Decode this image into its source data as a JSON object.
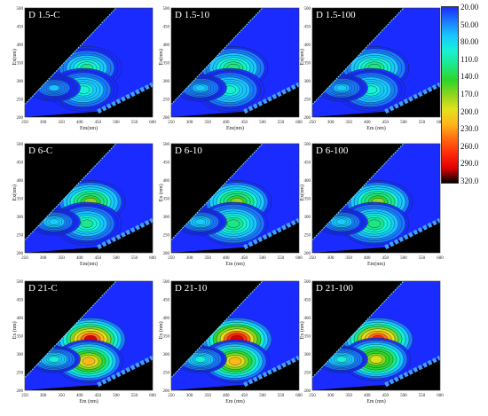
{
  "colors": {
    "plot_background": "#000000",
    "scale": [
      "#1a2bff",
      "#1b7cff",
      "#19c9ff",
      "#17f2d5",
      "#1fe784",
      "#2ed52a",
      "#8fd51f",
      "#e3e21a",
      "#ffb51a",
      "#ff6c12",
      "#ff2a0a",
      "#e00000",
      "#000000"
    ]
  },
  "colorbar": {
    "labels": [
      "20.00",
      "50.00",
      "80.00",
      "110.0",
      "140.0",
      "170.0",
      "200.0",
      "230.0",
      "260.0",
      "290.0",
      "320.0"
    ]
  },
  "chart_data": [
    {
      "type": "heatmap",
      "title": "D 1.5-C",
      "ylabel": "Ex(nm)",
      "xlabel": "Em(nm)",
      "xlim": [
        250,
        600
      ],
      "ylim": [
        200,
        500
      ],
      "xticks": [
        "250",
        "300",
        "350",
        "400",
        "450",
        "500",
        "550",
        "600"
      ],
      "yticks": [
        "200",
        "250",
        "300",
        "350",
        "400",
        "450",
        "500"
      ],
      "peaks": [
        {
          "em": 420,
          "ex": 335,
          "level": 130
        },
        {
          "em": 410,
          "ex": 275,
          "level": 110
        },
        {
          "em": 330,
          "ex": 280,
          "level": 75
        }
      ]
    },
    {
      "type": "heatmap",
      "title": "D 1.5-10",
      "ylabel": "Ex(nm)",
      "xlabel": "Em(nm)",
      "xlim": [
        250,
        600
      ],
      "ylim": [
        200,
        500
      ],
      "xticks": [
        "250",
        "300",
        "350",
        "400",
        "450",
        "500",
        "550",
        "600"
      ],
      "yticks": [
        "200",
        "250",
        "300",
        "350",
        "400",
        "450",
        "500"
      ],
      "peaks": [
        {
          "em": 420,
          "ex": 335,
          "level": 135
        },
        {
          "em": 410,
          "ex": 275,
          "level": 115
        },
        {
          "em": 330,
          "ex": 280,
          "level": 80
        }
      ]
    },
    {
      "type": "heatmap",
      "title": "D 1.5-100",
      "ylabel": "Ex(nm)",
      "xlabel": "Em (nm)",
      "xlim": [
        250,
        600
      ],
      "ylim": [
        200,
        500
      ],
      "xticks": [
        "250",
        "300",
        "350",
        "400",
        "450",
        "500",
        "550",
        "600"
      ],
      "yticks": [
        "200",
        "250",
        "300",
        "350",
        "400",
        "450",
        "500"
      ],
      "peaks": [
        {
          "em": 420,
          "ex": 335,
          "level": 135
        },
        {
          "em": 410,
          "ex": 275,
          "level": 115
        },
        {
          "em": 330,
          "ex": 280,
          "level": 80
        }
      ]
    },
    {
      "type": "heatmap",
      "title": "D 6-C",
      "ylabel": "Ex(nm)",
      "xlabel": "Em(nm)",
      "xlim": [
        250,
        600
      ],
      "ylim": [
        200,
        500
      ],
      "xticks": [
        "250",
        "300",
        "350",
        "400",
        "450",
        "500",
        "550",
        "600"
      ],
      "yticks": [
        "200",
        "250",
        "300",
        "350",
        "400",
        "450",
        "500"
      ],
      "peaks": [
        {
          "em": 430,
          "ex": 340,
          "level": 175
        },
        {
          "em": 420,
          "ex": 280,
          "level": 130
        },
        {
          "em": 330,
          "ex": 285,
          "level": 90
        }
      ]
    },
    {
      "type": "heatmap",
      "title": "D 6-10",
      "ylabel": "Ex (nm)",
      "xlabel": "Em (nm)",
      "xlim": [
        250,
        600
      ],
      "ylim": [
        200,
        500
      ],
      "xticks": [
        "250",
        "300",
        "350",
        "400",
        "450",
        "500",
        "550",
        "600"
      ],
      "yticks": [
        "200",
        "250",
        "300",
        "350",
        "400",
        "450",
        "500"
      ],
      "peaks": [
        {
          "em": 430,
          "ex": 340,
          "level": 180
        },
        {
          "em": 420,
          "ex": 280,
          "level": 135
        },
        {
          "em": 330,
          "ex": 285,
          "level": 90
        }
      ]
    },
    {
      "type": "heatmap",
      "title": "D 6-100",
      "ylabel": "Ex(nm)",
      "xlabel": "Em(nm)",
      "xlim": [
        250,
        600
      ],
      "ylim": [
        200,
        500
      ],
      "xticks": [
        "250",
        "300",
        "350",
        "400",
        "450",
        "500",
        "550",
        "600"
      ],
      "yticks": [
        "200",
        "250",
        "300",
        "350",
        "400",
        "450",
        "500"
      ],
      "peaks": [
        {
          "em": 430,
          "ex": 340,
          "level": 180
        },
        {
          "em": 420,
          "ex": 280,
          "level": 135
        },
        {
          "em": 330,
          "ex": 285,
          "level": 90
        }
      ]
    },
    {
      "type": "heatmap",
      "title": "D 21-C",
      "ylabel": "Ex (nm)",
      "xlabel": "Em (nm)",
      "xlim": [
        250,
        600
      ],
      "ylim": [
        200,
        500
      ],
      "xticks": [
        "250",
        "300",
        "350",
        "400",
        "450",
        "500",
        "550",
        "600"
      ],
      "yticks": [
        "200",
        "250",
        "300",
        "350",
        "400",
        "450",
        "500"
      ],
      "peaks": [
        {
          "em": 430,
          "ex": 340,
          "level": 300
        },
        {
          "em": 425,
          "ex": 280,
          "level": 220
        },
        {
          "em": 330,
          "ex": 285,
          "level": 100
        }
      ]
    },
    {
      "type": "heatmap",
      "title": "D 21-10",
      "ylabel": "Ex (nm)",
      "xlabel": "Em (nm)",
      "xlim": [
        250,
        600
      ],
      "ylim": [
        200,
        500
      ],
      "xticks": [
        "250",
        "300",
        "350",
        "400",
        "450",
        "500",
        "550",
        "600"
      ],
      "yticks": [
        "200",
        "250",
        "300",
        "350",
        "400",
        "450",
        "500"
      ],
      "peaks": [
        {
          "em": 430,
          "ex": 340,
          "level": 310
        },
        {
          "em": 425,
          "ex": 280,
          "level": 225
        },
        {
          "em": 330,
          "ex": 285,
          "level": 100
        }
      ]
    },
    {
      "type": "heatmap",
      "title": "D 21-100",
      "ylabel": "Ex (nm)",
      "xlabel": "Em (nm)",
      "xlim": [
        250,
        600
      ],
      "ylim": [
        200,
        500
      ],
      "xticks": [
        "250",
        "300",
        "350",
        "400",
        "450",
        "500",
        "550",
        "600"
      ],
      "yticks": [
        "200",
        "250",
        "300",
        "350",
        "400",
        "450",
        "500"
      ],
      "peaks": [
        {
          "em": 430,
          "ex": 340,
          "level": 290
        },
        {
          "em": 425,
          "ex": 285,
          "level": 210
        },
        {
          "em": 330,
          "ex": 285,
          "level": 100
        }
      ]
    }
  ]
}
